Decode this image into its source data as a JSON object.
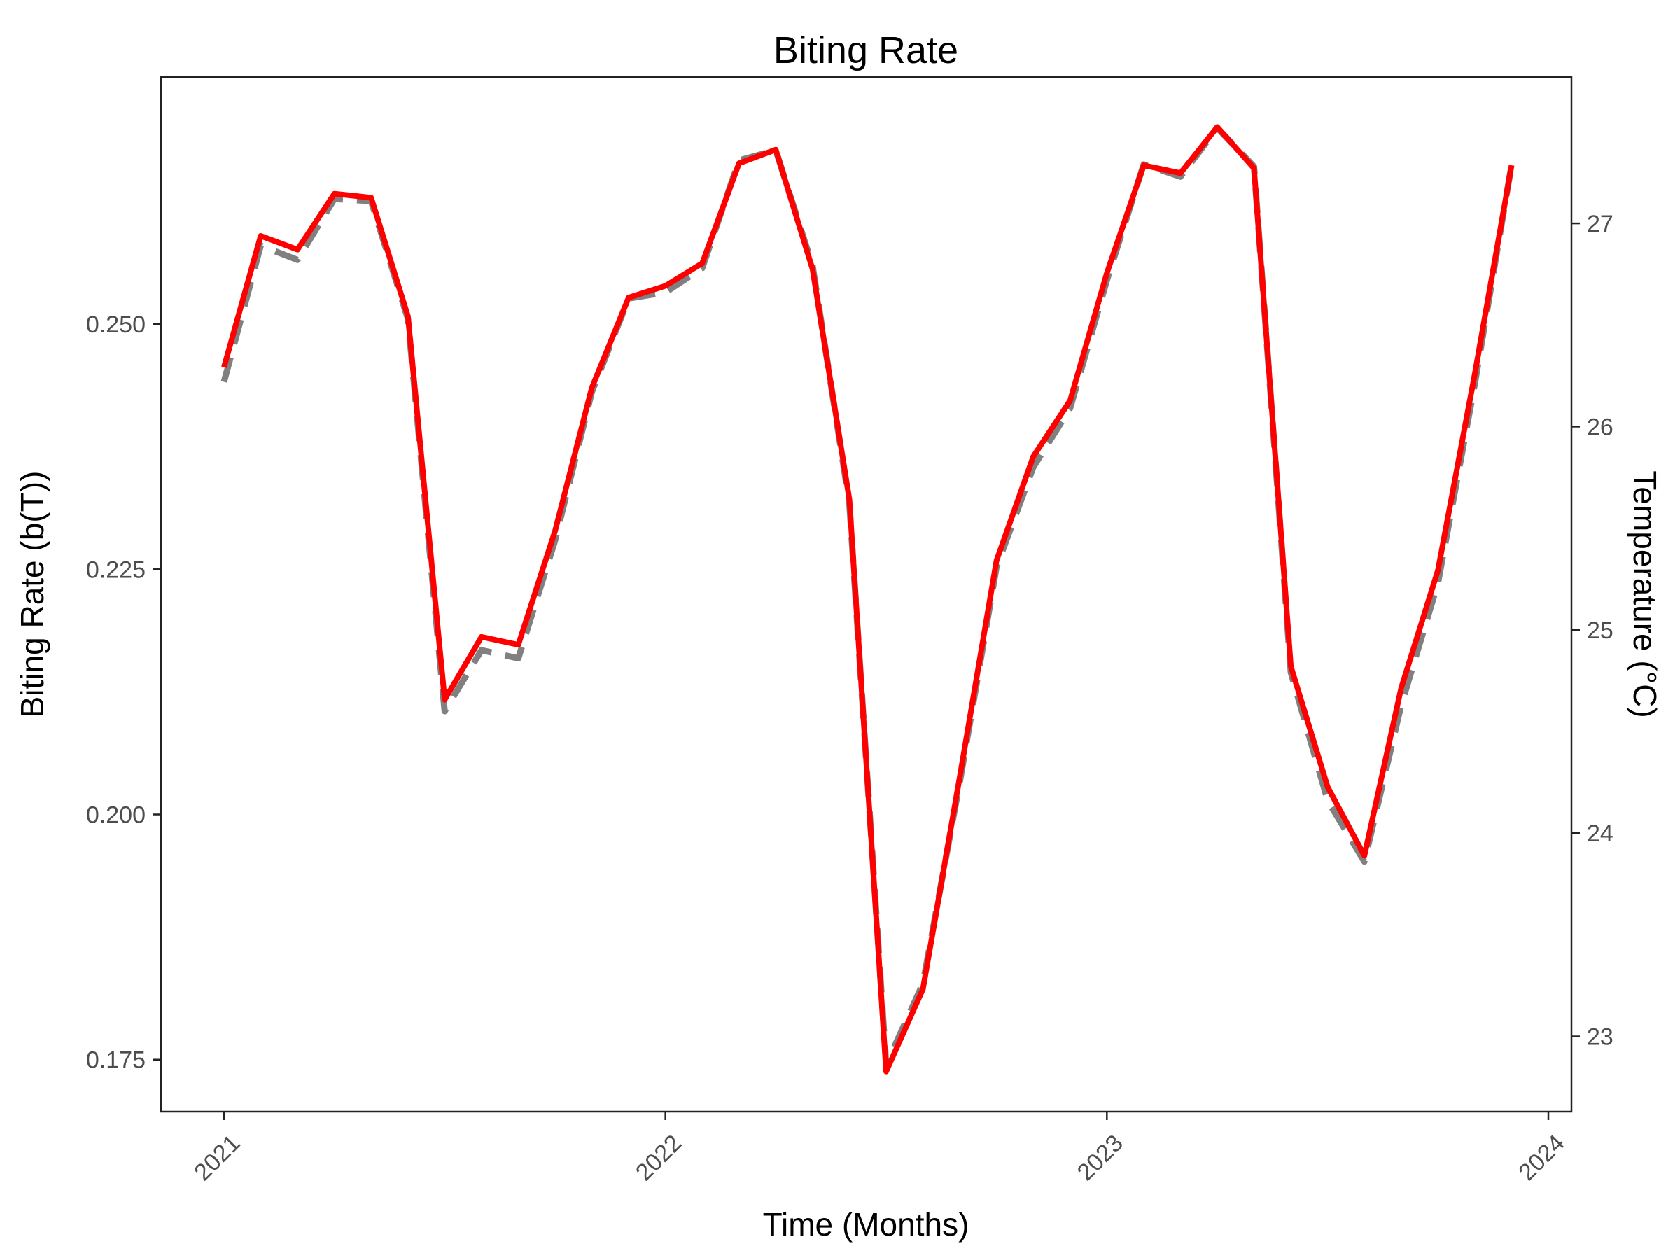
{
  "chart_data": {
    "type": "line",
    "title": "Biting Rate",
    "xlabel": "Time (Months)",
    "ylabel": "Biting Rate (b(T))",
    "y2label": "Temperature (°C)",
    "x_ticks": [
      "2021",
      "2022",
      "2023",
      "2024"
    ],
    "y_ticks": [
      "0.175",
      "0.200",
      "0.225",
      "0.250"
    ],
    "y2_ticks": [
      "23",
      "24",
      "25",
      "26",
      "27"
    ],
    "xlim": [
      2021.0,
      2024.0
    ],
    "ylim": [
      0.1697,
      0.2752
    ],
    "y2lim": [
      22.63,
      27.72
    ],
    "grid": false,
    "series": [
      {
        "color": "#ff0000",
        "dash": "solid",
        "axis": "left",
        "x": [
          2021.0,
          2021.0833,
          2021.1667,
          2021.25,
          2021.3333,
          2021.4167,
          2021.5,
          2021.5833,
          2021.6667,
          2021.75,
          2021.8333,
          2021.9167,
          2022.0,
          2022.0833,
          2022.1667,
          2022.25,
          2022.3333,
          2022.4167,
          2022.5,
          2022.5833,
          2022.6667,
          2022.75,
          2022.8333,
          2022.9167,
          2023.0,
          2023.0833,
          2023.1667,
          2023.25,
          2023.3333,
          2023.4167,
          2023.5,
          2023.5833,
          2023.6667,
          2023.75,
          2023.8333,
          2023.9167
        ],
        "y": [
          0.2456,
          0.259,
          0.2576,
          0.2633,
          0.2629,
          0.2508,
          0.2117,
          0.2181,
          0.2173,
          0.2289,
          0.2435,
          0.2527,
          0.2539,
          0.2562,
          0.2664,
          0.2678,
          0.2556,
          0.2321,
          0.1738,
          0.1822,
          0.2038,
          0.2259,
          0.2365,
          0.2422,
          0.2552,
          0.2662,
          0.2654,
          0.2701,
          0.2659,
          0.2151,
          0.2028,
          0.1958,
          0.2129,
          0.2249,
          0.2449,
          0.2662
        ]
      },
      {
        "color": "#808080",
        "dash": "dashed",
        "axis": "right",
        "x": [
          2021.0,
          2021.0833,
          2021.1667,
          2021.25,
          2021.3333,
          2021.4167,
          2021.5,
          2021.5833,
          2021.6667,
          2021.75,
          2021.8333,
          2021.9167,
          2022.0,
          2022.0833,
          2022.1667,
          2022.25,
          2022.3333,
          2022.4167,
          2022.5,
          2022.5833,
          2022.6667,
          2022.75,
          2022.8333,
          2022.9167,
          2023.0,
          2023.0833,
          2023.1667,
          2023.25,
          2023.3333,
          2023.4167,
          2023.5,
          2023.5833,
          2023.6667,
          2023.75,
          2023.8333,
          2023.9167
        ],
        "y": [
          26.22,
          26.89,
          26.82,
          27.12,
          27.11,
          26.53,
          24.6,
          24.9,
          24.86,
          25.44,
          26.17,
          26.63,
          26.66,
          26.78,
          27.31,
          27.36,
          26.79,
          25.62,
          22.86,
          23.26,
          24.25,
          25.31,
          25.8,
          26.09,
          26.72,
          27.29,
          27.23,
          27.47,
          27.28,
          24.79,
          24.16,
          23.86,
          24.63,
          25.23,
          26.21,
          27.29
        ]
      }
    ]
  }
}
